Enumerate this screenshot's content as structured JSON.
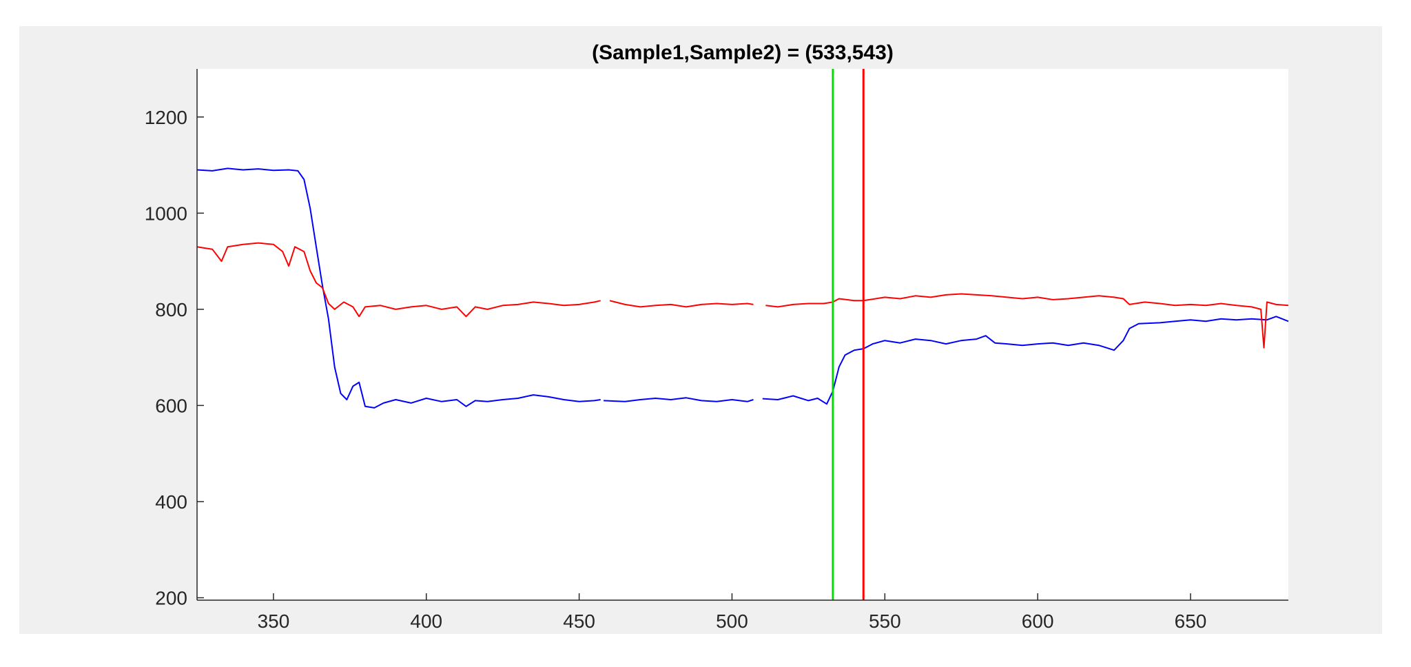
{
  "chart_data": {
    "type": "line",
    "title": "(Sample1,Sample2) = (533,543)",
    "xlabel": "",
    "ylabel": "",
    "xlim": [
      325,
      682
    ],
    "ylim": [
      195,
      1300
    ],
    "x_ticks": [
      350,
      400,
      450,
      500,
      550,
      600,
      650
    ],
    "y_ticks": [
      200,
      400,
      600,
      800,
      1000,
      1200
    ],
    "grid": false,
    "markers": [
      {
        "x": 533,
        "color": "#00dd00"
      },
      {
        "x": 543,
        "color": "#ff0000"
      }
    ],
    "series": [
      {
        "color": "#0000ff",
        "segments": [
          [
            [
              325,
              1090
            ],
            [
              330,
              1088
            ],
            [
              335,
              1093
            ],
            [
              340,
              1090
            ],
            [
              345,
              1092
            ],
            [
              350,
              1089
            ],
            [
              355,
              1090
            ],
            [
              358,
              1088
            ],
            [
              360,
              1070
            ],
            [
              362,
              1010
            ],
            [
              364,
              930
            ],
            [
              366,
              850
            ],
            [
              368,
              780
            ],
            [
              370,
              680
            ],
            [
              372,
              625
            ],
            [
              374,
              612
            ],
            [
              376,
              640
            ],
            [
              378,
              648
            ],
            [
              380,
              598
            ],
            [
              383,
              595
            ],
            [
              386,
              605
            ],
            [
              390,
              612
            ],
            [
              395,
              605
            ],
            [
              400,
              615
            ],
            [
              405,
              608
            ],
            [
              410,
              612
            ],
            [
              413,
              598
            ],
            [
              416,
              610
            ],
            [
              420,
              608
            ],
            [
              425,
              612
            ],
            [
              430,
              615
            ],
            [
              435,
              622
            ],
            [
              440,
              618
            ],
            [
              445,
              612
            ],
            [
              450,
              608
            ],
            [
              455,
              610
            ],
            [
              457,
              612
            ]
          ],
          [
            [
              458,
              610
            ],
            [
              465,
              608
            ],
            [
              470,
              612
            ],
            [
              475,
              615
            ],
            [
              480,
              612
            ],
            [
              485,
              616
            ],
            [
              490,
              610
            ],
            [
              495,
              608
            ],
            [
              500,
              612
            ],
            [
              505,
              608
            ],
            [
              507,
              612
            ]
          ],
          [
            [
              510,
              614
            ],
            [
              515,
              612
            ],
            [
              520,
              620
            ],
            [
              525,
              610
            ],
            [
              528,
              615
            ],
            [
              531,
              603
            ],
            [
              533,
              630
            ],
            [
              535,
              680
            ],
            [
              537,
              705
            ],
            [
              540,
              715
            ],
            [
              543,
              718
            ],
            [
              546,
              728
            ],
            [
              550,
              735
            ],
            [
              555,
              730
            ],
            [
              560,
              738
            ],
            [
              565,
              735
            ],
            [
              570,
              728
            ],
            [
              575,
              735
            ],
            [
              580,
              738
            ],
            [
              583,
              745
            ],
            [
              586,
              730
            ],
            [
              590,
              728
            ],
            [
              595,
              725
            ],
            [
              600,
              728
            ],
            [
              605,
              730
            ],
            [
              610,
              725
            ],
            [
              615,
              730
            ],
            [
              620,
              725
            ],
            [
              625,
              715
            ],
            [
              628,
              735
            ],
            [
              630,
              760
            ],
            [
              633,
              770
            ],
            [
              640,
              772
            ],
            [
              645,
              775
            ],
            [
              650,
              778
            ],
            [
              655,
              775
            ],
            [
              660,
              780
            ],
            [
              665,
              778
            ],
            [
              670,
              780
            ],
            [
              675,
              778
            ],
            [
              678,
              785
            ],
            [
              682,
              775
            ]
          ]
        ]
      },
      {
        "color": "#ff0000",
        "segments": [
          [
            [
              325,
              930
            ],
            [
              330,
              925
            ],
            [
              333,
              900
            ],
            [
              335,
              930
            ],
            [
              340,
              935
            ],
            [
              345,
              938
            ],
            [
              350,
              935
            ],
            [
              353,
              920
            ],
            [
              355,
              890
            ],
            [
              357,
              930
            ],
            [
              360,
              920
            ],
            [
              362,
              880
            ],
            [
              364,
              855
            ],
            [
              366,
              845
            ],
            [
              368,
              812
            ],
            [
              370,
              800
            ],
            [
              373,
              815
            ],
            [
              376,
              805
            ],
            [
              378,
              785
            ],
            [
              380,
              805
            ],
            [
              385,
              808
            ],
            [
              390,
              800
            ],
            [
              395,
              805
            ],
            [
              400,
              808
            ],
            [
              405,
              800
            ],
            [
              410,
              805
            ],
            [
              413,
              785
            ],
            [
              416,
              805
            ],
            [
              420,
              800
            ],
            [
              425,
              808
            ],
            [
              430,
              810
            ],
            [
              435,
              815
            ],
            [
              440,
              812
            ],
            [
              445,
              808
            ],
            [
              450,
              810
            ],
            [
              455,
              815
            ],
            [
              457,
              818
            ]
          ],
          [
            [
              460,
              818
            ],
            [
              465,
              810
            ],
            [
              470,
              805
            ],
            [
              475,
              808
            ],
            [
              480,
              810
            ],
            [
              485,
              805
            ],
            [
              490,
              810
            ],
            [
              495,
              812
            ],
            [
              500,
              810
            ],
            [
              505,
              812
            ],
            [
              507,
              810
            ]
          ],
          [
            [
              511,
              808
            ],
            [
              515,
              805
            ],
            [
              520,
              810
            ],
            [
              525,
              812
            ],
            [
              530,
              812
            ],
            [
              533,
              815
            ],
            [
              535,
              822
            ],
            [
              540,
              818
            ],
            [
              543,
              818
            ],
            [
              545,
              820
            ],
            [
              550,
              825
            ],
            [
              555,
              822
            ],
            [
              560,
              828
            ],
            [
              565,
              825
            ],
            [
              570,
              830
            ],
            [
              575,
              832
            ],
            [
              580,
              830
            ],
            [
              585,
              828
            ],
            [
              590,
              825
            ],
            [
              595,
              822
            ],
            [
              600,
              825
            ],
            [
              605,
              820
            ],
            [
              610,
              822
            ],
            [
              615,
              825
            ],
            [
              620,
              828
            ],
            [
              625,
              825
            ],
            [
              628,
              822
            ],
            [
              630,
              810
            ],
            [
              635,
              815
            ],
            [
              640,
              812
            ],
            [
              645,
              808
            ],
            [
              650,
              810
            ],
            [
              655,
              808
            ],
            [
              660,
              812
            ],
            [
              665,
              808
            ],
            [
              670,
              805
            ],
            [
              673,
              800
            ],
            [
              674,
              720
            ],
            [
              675,
              815
            ],
            [
              678,
              810
            ],
            [
              682,
              808
            ]
          ]
        ]
      }
    ]
  }
}
